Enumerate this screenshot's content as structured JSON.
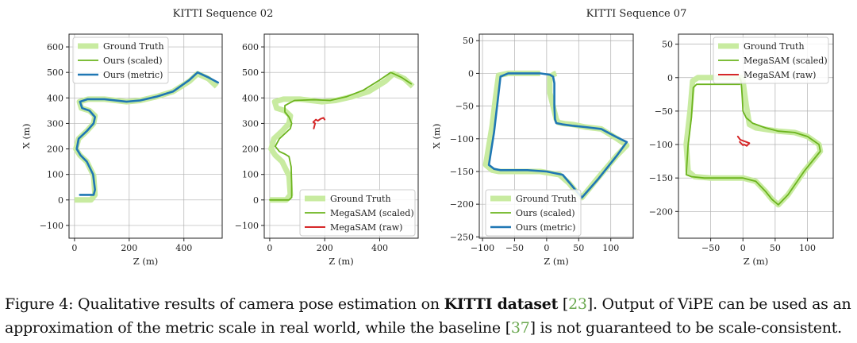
{
  "figure": {
    "caption": {
      "line1_pre": "Figure 4: Qualitative results of camera pose estimation on ",
      "line1_bold": "KITTI dataset",
      "line1_cite_open": " [",
      "line1_cite": "23",
      "line1_post": "]. Output of ViPE can be used as an",
      "line2_pre": "approximation of the metric scale in real world, while the baseline [",
      "line2_cite": "37",
      "line2_post": "] is not guaranteed to be scale-consistent."
    }
  },
  "colors": {
    "gt": "#c8eba0",
    "ours_scaled": "#6cb41e",
    "ours_metric": "#1f77b4",
    "megasam_raw": "#d62728",
    "grid": "#b0b0b0"
  },
  "chart_data": [
    {
      "type": "line",
      "title": "KITTI Sequence 02",
      "xlabel": "Z (m)",
      "ylabel": "X (m)",
      "xlim": [
        -20,
        540
      ],
      "ylim": [
        -150,
        650
      ],
      "xticks": [
        0,
        200,
        400
      ],
      "yticks": [
        -100,
        0,
        100,
        200,
        300,
        400,
        500,
        600
      ],
      "grid": true,
      "legend_position": "top-left",
      "series": [
        {
          "name": "Ground Truth",
          "style": "gt",
          "x": [
            0,
            60,
            75,
            70,
            45,
            20,
            5,
            15,
            45,
            70,
            75,
            55,
            25,
            18,
            50,
            110,
            190,
            240,
            300,
            360,
            420,
            450,
            490,
            520
          ],
          "y": [
            0,
            0,
            20,
            95,
            150,
            175,
            200,
            240,
            270,
            300,
            330,
            350,
            360,
            385,
            395,
            395,
            385,
            390,
            405,
            425,
            465,
            495,
            475,
            445
          ]
        },
        {
          "name": "Ours (scaled)",
          "style": "ours_scaled",
          "x": [
            20,
            70,
            75,
            68,
            45,
            22,
            8,
            15,
            45,
            70,
            75,
            55,
            28,
            20,
            48,
            110,
            190,
            240,
            300,
            360,
            420,
            450,
            490,
            525
          ],
          "y": [
            20,
            20,
            40,
            100,
            150,
            175,
            200,
            240,
            270,
            300,
            325,
            350,
            360,
            385,
            395,
            395,
            385,
            390,
            405,
            425,
            470,
            500,
            480,
            460
          ]
        },
        {
          "name": "Ours (metric)",
          "style": "ours_metric",
          "x": [
            20,
            70,
            75,
            68,
            45,
            22,
            8,
            15,
            45,
            70,
            75,
            55,
            28,
            20,
            48,
            110,
            190,
            240,
            300,
            360,
            420,
            450,
            490,
            525
          ],
          "y": [
            20,
            20,
            40,
            100,
            150,
            175,
            200,
            240,
            270,
            300,
            325,
            350,
            360,
            385,
            395,
            395,
            385,
            390,
            405,
            425,
            470,
            500,
            480,
            460
          ]
        }
      ]
    },
    {
      "type": "line",
      "xlabel": "Z (m)",
      "xlim": [
        -20,
        540
      ],
      "ylim": [
        -150,
        650
      ],
      "xticks": [
        0,
        200,
        400
      ],
      "yticks": [
        -100,
        0,
        100,
        200,
        300,
        400,
        500,
        600
      ],
      "grid": true,
      "legend_position": "bottom-right",
      "series": [
        {
          "name": "Ground Truth",
          "style": "gt",
          "x": [
            0,
            60,
            75,
            70,
            45,
            20,
            5,
            15,
            45,
            70,
            75,
            55,
            25,
            18,
            50,
            110,
            190,
            240,
            300,
            360,
            420,
            450,
            490,
            520
          ],
          "y": [
            0,
            0,
            20,
            95,
            150,
            175,
            200,
            240,
            270,
            300,
            330,
            350,
            360,
            385,
            395,
            395,
            385,
            390,
            405,
            425,
            465,
            495,
            475,
            445
          ]
        },
        {
          "name": "MegaSAM (scaled)",
          "style": "ours_scaled",
          "x": [
            0,
            70,
            80,
            80,
            78,
            70,
            55,
            35,
            20,
            35,
            55,
            75,
            80,
            70,
            55,
            55,
            90,
            160,
            220,
            280,
            340,
            400,
            440,
            480,
            515
          ],
          "y": [
            0,
            0,
            10,
            60,
            130,
            170,
            180,
            190,
            210,
            240,
            260,
            280,
            300,
            325,
            345,
            370,
            390,
            393,
            390,
            405,
            430,
            470,
            500,
            480,
            455
          ]
        },
        {
          "name": "MegaSAM (raw)",
          "style": "megasam_raw",
          "x": [
            160,
            165,
            158,
            168,
            175,
            185,
            195,
            200
          ],
          "y": [
            280,
            300,
            305,
            315,
            310,
            318,
            322,
            315
          ]
        }
      ]
    },
    {
      "type": "line",
      "title": "KITTI Sequence 07",
      "xlabel": "Z (m)",
      "ylabel": "X (m)",
      "xlim": [
        -105,
        135
      ],
      "ylim": [
        -252,
        60
      ],
      "xticks": [
        -100,
        -50,
        0,
        50,
        100
      ],
      "yticks": [
        -250,
        -200,
        -150,
        -100,
        -50,
        0,
        50
      ],
      "grid": true,
      "legend_position": "bottom-left",
      "series": [
        {
          "name": "Ground Truth",
          "style": "gt",
          "x": [
            -10,
            -60,
            -75,
            -80,
            -85,
            -95,
            -85,
            -75,
            -60,
            -40,
            -10,
            20,
            35,
            45,
            55,
            80,
            110,
            125,
            110,
            85,
            60,
            50,
            40,
            28,
            18,
            15,
            10,
            5,
            5,
            5,
            10,
            12,
            15
          ],
          "y": [
            0,
            0,
            -3,
            -40,
            -80,
            -140,
            -148,
            -150,
            -150,
            -150,
            -150,
            -155,
            -168,
            -180,
            -190,
            -160,
            -125,
            -110,
            -100,
            -85,
            -82,
            -80,
            -78,
            -77,
            -75,
            -70,
            -50,
            -30,
            -15,
            -5,
            -2,
            -1,
            0
          ]
        },
        {
          "name": "Ours (scaled)",
          "style": "ours_scaled",
          "x": [
            -10,
            -60,
            -72,
            -76,
            -82,
            -90,
            -82,
            -72,
            -55,
            -30,
            0,
            25,
            38,
            48,
            55,
            80,
            110,
            125,
            110,
            85,
            60,
            40,
            25,
            15,
            13,
            12,
            12,
            12,
            10,
            5,
            -10
          ],
          "y": [
            0,
            0,
            -5,
            -40,
            -90,
            -140,
            -146,
            -148,
            -148,
            -148,
            -150,
            -155,
            -170,
            -182,
            -190,
            -162,
            -125,
            -105,
            -98,
            -85,
            -82,
            -80,
            -78,
            -76,
            -70,
            -50,
            -30,
            -15,
            -5,
            -2,
            0
          ]
        },
        {
          "name": "Ours (metric)",
          "style": "ours_metric",
          "x": [
            -10,
            -60,
            -72,
            -76,
            -82,
            -90,
            -82,
            -72,
            -55,
            -30,
            0,
            25,
            38,
            48,
            55,
            80,
            110,
            125,
            110,
            85,
            60,
            40,
            25,
            15,
            13,
            12,
            12,
            12,
            10,
            5,
            -10
          ],
          "y": [
            0,
            0,
            -5,
            -40,
            -90,
            -140,
            -146,
            -148,
            -148,
            -148,
            -150,
            -155,
            -170,
            -182,
            -190,
            -162,
            -125,
            -105,
            -98,
            -85,
            -82,
            -80,
            -78,
            -76,
            -70,
            -50,
            -30,
            -15,
            -5,
            -2,
            0
          ]
        }
      ]
    },
    {
      "type": "line",
      "xlabel": "Z (m)",
      "xlim": [
        -100,
        140
      ],
      "ylim": [
        -240,
        65
      ],
      "xticks": [
        -50,
        0,
        50,
        100
      ],
      "yticks": [
        -200,
        -150,
        -100,
        -50,
        0,
        50
      ],
      "grid": true,
      "legend_position": "top-right",
      "series": [
        {
          "name": "Ground Truth",
          "style": "gt",
          "x": [
            -5,
            -70,
            -78,
            -82,
            -88,
            -85,
            -75,
            -50,
            -20,
            0,
            20,
            35,
            45,
            55,
            70,
            95,
            120,
            118,
            100,
            80,
            55,
            40,
            20,
            10,
            5,
            2,
            0,
            -2,
            -5
          ],
          "y": [
            0,
            0,
            -5,
            -50,
            -100,
            -140,
            -148,
            -150,
            -150,
            -150,
            -155,
            -170,
            -182,
            -190,
            -175,
            -140,
            -110,
            -100,
            -88,
            -82,
            -80,
            -78,
            -75,
            -70,
            -40,
            -20,
            -5,
            0,
            0
          ]
        },
        {
          "name": "MegaSAM (scaled)",
          "style": "ours_scaled",
          "x": [
            -5,
            -72,
            -77,
            -80,
            -85,
            -88,
            -80,
            -60,
            -30,
            0,
            20,
            35,
            45,
            55,
            70,
            95,
            120,
            118,
            100,
            80,
            55,
            35,
            15,
            5,
            0,
            -1,
            -2,
            -3,
            -5
          ],
          "y": [
            -10,
            -10,
            -15,
            -60,
            -100,
            -145,
            -148,
            -150,
            -150,
            -150,
            -155,
            -170,
            -182,
            -190,
            -175,
            -140,
            -110,
            -100,
            -88,
            -82,
            -80,
            -75,
            -68,
            -60,
            -50,
            -30,
            -15,
            -5,
            0
          ]
        },
        {
          "name": "MegaSAM (raw)",
          "style": "megasam_raw",
          "x": [
            -8,
            -4,
            5,
            10,
            6,
            2,
            0,
            -5
          ],
          "y": [
            -88,
            -93,
            -96,
            -98,
            -102,
            -100,
            -101,
            -96
          ]
        }
      ]
    }
  ]
}
